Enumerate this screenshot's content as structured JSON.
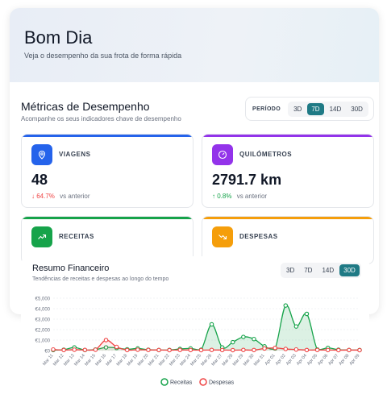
{
  "header": {
    "greeting": "Bom Dia",
    "subtitle": "Veja o desempenho da sua frota de forma rápida"
  },
  "metrics_section": {
    "title": "Métricas de Desempenho",
    "subtitle": "Acompanhe os seus indicadores chave de desempenho",
    "period_label": "PERÍODO",
    "period_options": [
      "3D",
      "7D",
      "14D",
      "30D"
    ],
    "period_selected": "7D"
  },
  "cards": {
    "viagens": {
      "label": "VIAGENS",
      "value": "48",
      "change": "64.7%",
      "direction": "down",
      "vs": "vs anterior",
      "color": "#2563eb",
      "icon": "map-pin-icon"
    },
    "quilometros": {
      "label": "QUILÓMETROS",
      "value": "2791.7 km",
      "change": "0.8%",
      "direction": "up",
      "vs": "vs anterior",
      "color": "#9333ea",
      "icon": "gauge-icon"
    },
    "receitas": {
      "label": "RECEITAS",
      "color": "#16a34a",
      "icon": "trend-up-icon"
    },
    "despesas": {
      "label": "DESPESAS",
      "color": "#f59e0b",
      "icon": "trend-down-icon"
    }
  },
  "colors": {
    "accent": "#1f7a85",
    "down": "#ef4444",
    "up": "#16a34a"
  },
  "financial": {
    "title": "Resumo Financeiro",
    "subtitle": "Tendências de receitas e despesas ao longo do tempo",
    "period_options": [
      "3D",
      "7D",
      "14D",
      "30D"
    ],
    "period_selected": "30D"
  },
  "chart_data": {
    "type": "area",
    "title": "Resumo Financeiro",
    "x": [
      "Mar 11",
      "Mar 12",
      "Mar 13",
      "Mar 14",
      "Mar 15",
      "Mar 16",
      "Mar 17",
      "Mar 18",
      "Mar 19",
      "Mar 20",
      "Mar 21",
      "Mar 22",
      "Mar 23",
      "Mar 24",
      "Mar 25",
      "Mar 26",
      "Mar 27",
      "Mar 28",
      "Mar 29",
      "Mar 30",
      "Mar 31",
      "Apr 01",
      "Apr 02",
      "Apr 03",
      "Apr 04",
      "Apr 05",
      "Apr 06",
      "Apr 07",
      "Apr 08",
      "Apr 09"
    ],
    "yticks": [
      "€0",
      "€1,000",
      "€2,000",
      "€3,000",
      "€4,000",
      "€5,000"
    ],
    "ylim": [
      0,
      5000
    ],
    "series": [
      {
        "name": "Receitas",
        "color": "#16a34a",
        "values": [
          50,
          80,
          300,
          50,
          100,
          300,
          250,
          120,
          200,
          80,
          50,
          60,
          150,
          200,
          80,
          2500,
          300,
          800,
          1300,
          1100,
          400,
          200,
          4300,
          2300,
          3500,
          100,
          250,
          80,
          50,
          50
        ]
      },
      {
        "name": "Despesas",
        "color": "#ef4444",
        "values": [
          100,
          50,
          80,
          60,
          80,
          1000,
          350,
          50,
          80,
          60,
          50,
          40,
          60,
          50,
          40,
          60,
          50,
          40,
          60,
          50,
          200,
          250,
          150,
          100,
          50,
          60,
          50,
          40,
          50,
          40
        ]
      }
    ],
    "legend": "bottom-center",
    "grid": true
  }
}
